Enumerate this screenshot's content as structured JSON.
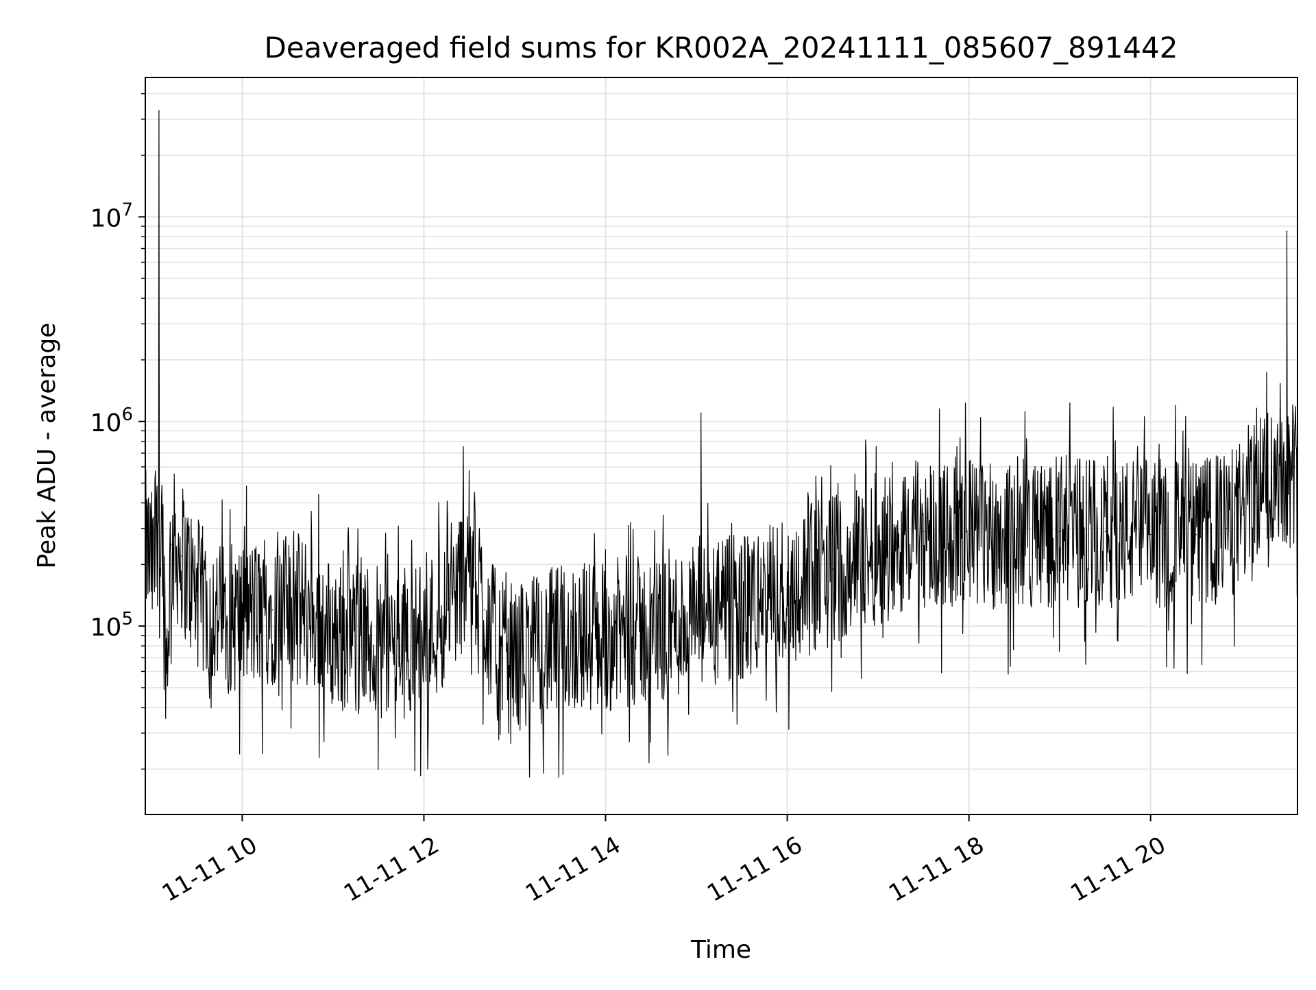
{
  "chart_data": {
    "type": "line",
    "title": "Deaveraged field sums for KR002A_20241111_085607_891442",
    "xlabel": "Time",
    "ylabel": "Peak ADU - average",
    "xlim": [
      "2024-11-11 08:56",
      "2024-11-11 21:37"
    ],
    "ylim": [
      12000,
      48000000
    ],
    "yscale": "log",
    "grid": true,
    "x_tick_labels": [
      "11-11 10",
      "11-11 12",
      "11-11 14",
      "11-11 16",
      "11-11 18",
      "11-11 20"
    ],
    "x_tick_times": [
      "2024-11-11 10:00",
      "2024-11-11 12:00",
      "2024-11-11 14:00",
      "2024-11-11 16:00",
      "2024-11-11 18:00",
      "2024-11-11 20:00"
    ],
    "y_tick_labels": [
      {
        "base": "10",
        "exp": "5",
        "value": 100000
      },
      {
        "base": "10",
        "exp": "6",
        "value": 1000000
      },
      {
        "base": "10",
        "exp": "7",
        "value": 10000000
      }
    ],
    "line_color": "#000000",
    "series": [
      {
        "x": [
          "2024-11-11 08:56",
          "2024-11-11 09:02",
          "2024-11-11 09:05",
          "2024-11-11 09:07",
          "2024-11-11 09:10",
          "2024-11-11 09:13",
          "2024-11-11 09:20",
          "2024-11-11 09:30",
          "2024-11-11 09:45",
          "2024-11-11 10:00",
          "2024-11-11 10:20",
          "2024-11-11 10:40",
          "2024-11-11 11:00",
          "2024-11-11 11:20",
          "2024-11-11 11:40",
          "2024-11-11 12:00",
          "2024-11-11 12:15",
          "2024-11-11 12:25",
          "2024-11-11 12:30",
          "2024-11-11 12:40",
          "2024-11-11 12:50",
          "2024-11-11 13:00",
          "2024-11-11 13:20",
          "2024-11-11 13:40",
          "2024-11-11 14:00",
          "2024-11-11 14:30",
          "2024-11-11 15:00",
          "2024-11-11 15:03",
          "2024-11-11 15:30",
          "2024-11-11 16:00",
          "2024-11-11 16:30",
          "2024-11-11 17:00",
          "2024-11-11 17:30",
          "2024-11-11 18:00",
          "2024-11-11 18:30",
          "2024-11-11 19:00",
          "2024-11-11 19:30",
          "2024-11-11 20:00",
          "2024-11-11 20:30",
          "2024-11-11 20:50",
          "2024-11-11 21:00",
          "2024-11-11 21:10",
          "2024-11-11 21:20",
          "2024-11-11 21:30",
          "2024-11-11 21:35",
          "2024-11-11 21:37"
        ],
        "y": [
          250000,
          180000,
          33000000,
          350000,
          60000,
          250000,
          220000,
          140000,
          110000,
          110000,
          120000,
          120000,
          90000,
          85000,
          80000,
          90000,
          120000,
          170000,
          250000,
          120000,
          70000,
          70000,
          80000,
          90000,
          90000,
          95000,
          110000,
          1100000,
          120000,
          150000,
          190000,
          240000,
          290000,
          280000,
          290000,
          290000,
          290000,
          280000,
          280000,
          300000,
          350000,
          500000,
          520000,
          8500000,
          600000,
          480000
        ]
      }
    ]
  }
}
